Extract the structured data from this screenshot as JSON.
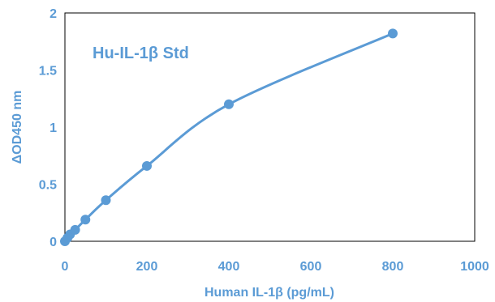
{
  "chart_data": {
    "type": "scatter",
    "title": "",
    "annotation": "Hu-IL-1β Std",
    "xlabel": "Human IL-1β (pg/mL)",
    "ylabel": "ΔOD450 nm",
    "xlim": [
      0,
      1000
    ],
    "ylim": [
      0,
      2
    ],
    "xticks": [
      0,
      200,
      400,
      600,
      800,
      1000
    ],
    "yticks": [
      0,
      0.5,
      1,
      1.5,
      2
    ],
    "xtick_labels": [
      "0",
      "200",
      "400",
      "600",
      "800",
      "1000"
    ],
    "ytick_labels": [
      "0",
      "0.5",
      "1",
      "1.5",
      "2"
    ],
    "grid": false,
    "smooth_line": true,
    "color": "#5B9BD5",
    "series": [
      {
        "x": [
          0,
          6.25,
          12.5,
          25,
          50,
          100,
          200,
          400,
          800
        ],
        "y": [
          0.0,
          0.03,
          0.06,
          0.1,
          0.19,
          0.36,
          0.66,
          1.2,
          1.82
        ]
      }
    ]
  }
}
